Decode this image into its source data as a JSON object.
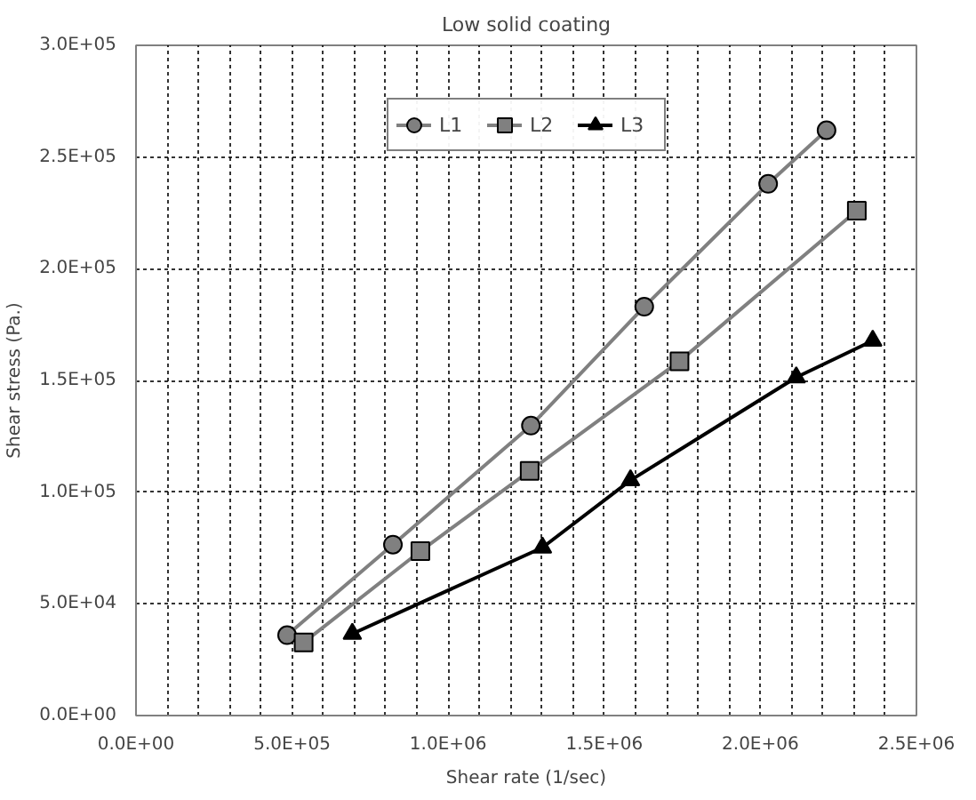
{
  "chart_data": {
    "type": "line",
    "title": "Low solid coating",
    "xlabel": "Shear rate (1/sec)",
    "ylabel": "Shear stress (Pa.)",
    "series": [
      {
        "name": "L1",
        "color": "#808080",
        "marker": "circle",
        "x": [
          484000,
          823000,
          1265000,
          1628000,
          2025000,
          2212000
        ],
        "values": [
          36000,
          76500,
          129800,
          183000,
          238000,
          262000
        ]
      },
      {
        "name": "L2",
        "color": "#808080",
        "marker": "square",
        "x": [
          537000,
          911000,
          1261000,
          1741000,
          2309000
        ],
        "values": [
          32700,
          73600,
          109500,
          158600,
          226000
        ]
      },
      {
        "name": "L3",
        "color": "#000000",
        "marker": "triangle",
        "x": [
          693000,
          1302000,
          1584000,
          2115000,
          2360000
        ],
        "values": [
          36600,
          75200,
          105300,
          151400,
          167800
        ]
      }
    ],
    "xlim": [
      0,
      2500000
    ],
    "ylim": [
      0,
      300000
    ],
    "xticks": [
      {
        "value": 0,
        "label": "0.0E+00"
      },
      {
        "value": 100000,
        "label": null
      },
      {
        "value": 200000,
        "label": null
      },
      {
        "value": 300000,
        "label": null
      },
      {
        "value": 400000,
        "label": null
      },
      {
        "value": 500000,
        "label": "5.0E+05"
      },
      {
        "value": 600000,
        "label": null
      },
      {
        "value": 700000,
        "label": null
      },
      {
        "value": 800000,
        "label": null
      },
      {
        "value": 900000,
        "label": null
      },
      {
        "value": 1000000,
        "label": "1.0E+06"
      },
      {
        "value": 1100000,
        "label": null
      },
      {
        "value": 1200000,
        "label": null
      },
      {
        "value": 1300000,
        "label": null
      },
      {
        "value": 1400000,
        "label": null
      },
      {
        "value": 1500000,
        "label": "1.5E+06"
      },
      {
        "value": 1600000,
        "label": null
      },
      {
        "value": 1700000,
        "label": null
      },
      {
        "value": 1800000,
        "label": null
      },
      {
        "value": 1900000,
        "label": null
      },
      {
        "value": 2000000,
        "label": "2.0E+06"
      },
      {
        "value": 2100000,
        "label": null
      },
      {
        "value": 2200000,
        "label": null
      },
      {
        "value": 2300000,
        "label": null
      },
      {
        "value": 2400000,
        "label": null
      },
      {
        "value": 2500000,
        "label": "2.5E+06"
      }
    ],
    "yticks": [
      {
        "value": 0,
        "label": "0.0E+00"
      },
      {
        "value": 50000,
        "label": "5.0E+04"
      },
      {
        "value": 100000,
        "label": "1.0E+05"
      },
      {
        "value": 150000,
        "label": "1.5E+05"
      },
      {
        "value": 200000,
        "label": "2.0E+05"
      },
      {
        "value": 250000,
        "label": "2.5E+05"
      },
      {
        "value": 300000,
        "label": "3.0E+05"
      }
    ],
    "grid": true,
    "legend": "top",
    "line_style": "solid"
  }
}
